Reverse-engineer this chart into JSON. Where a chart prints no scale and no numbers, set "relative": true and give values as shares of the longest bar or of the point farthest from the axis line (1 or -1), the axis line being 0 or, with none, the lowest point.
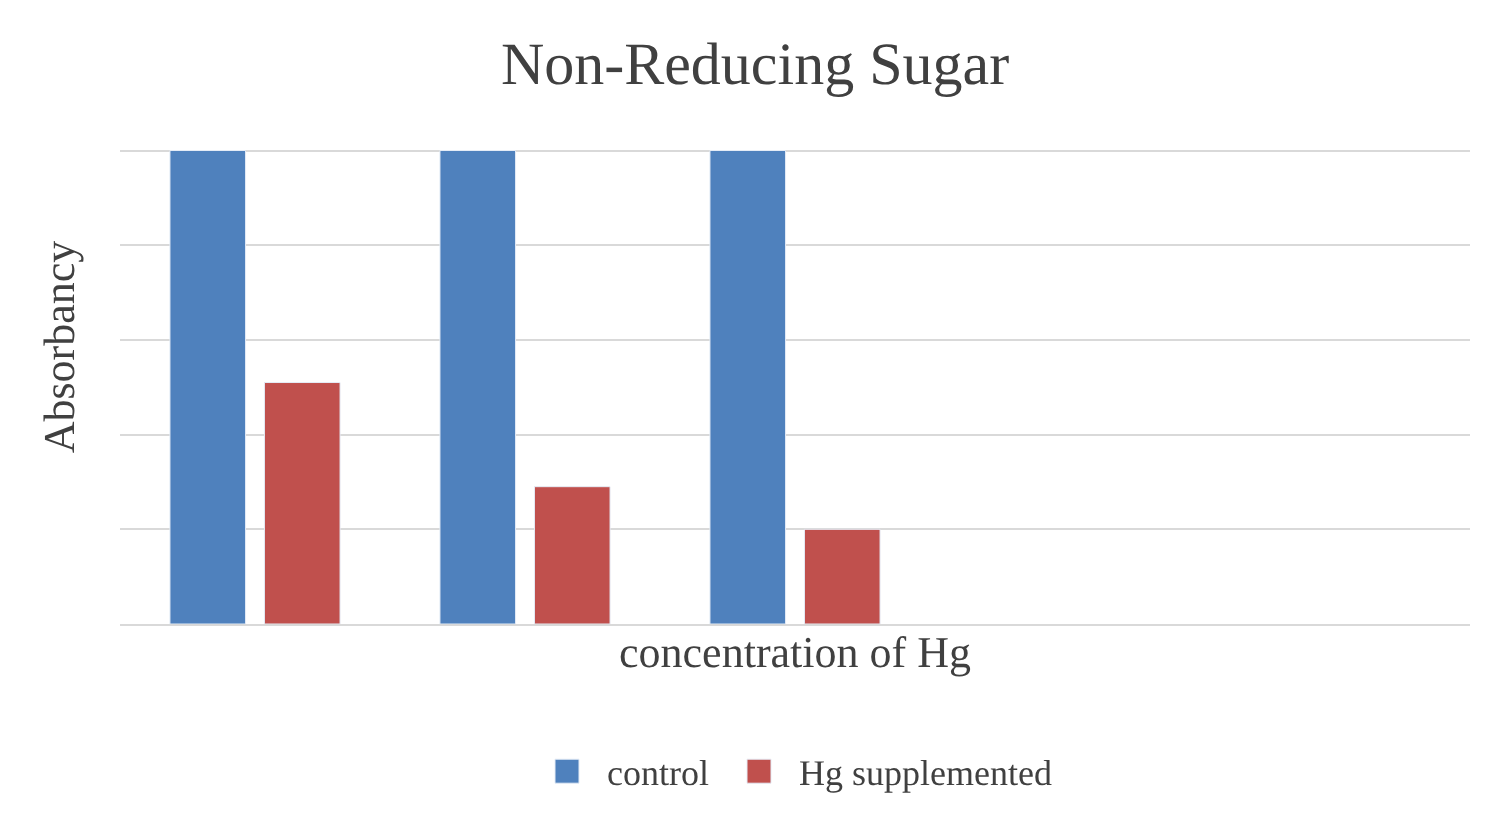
{
  "chart_data": {
    "type": "bar",
    "title": "Non-Reducing Sugar",
    "xlabel": "concentration of Hg",
    "ylabel": "Absorbancy",
    "categories": [
      null,
      null,
      null
    ],
    "series": [
      {
        "name": "control",
        "color": "#4f81bd",
        "values": [
          1,
          1,
          1
        ]
      },
      {
        "name": "Hg supplemented",
        "color": "#c0504d",
        "values": [
          0.51,
          0.29,
          0.2
        ]
      }
    ],
    "relative": true,
    "grid": "y",
    "legend": "bottom"
  }
}
